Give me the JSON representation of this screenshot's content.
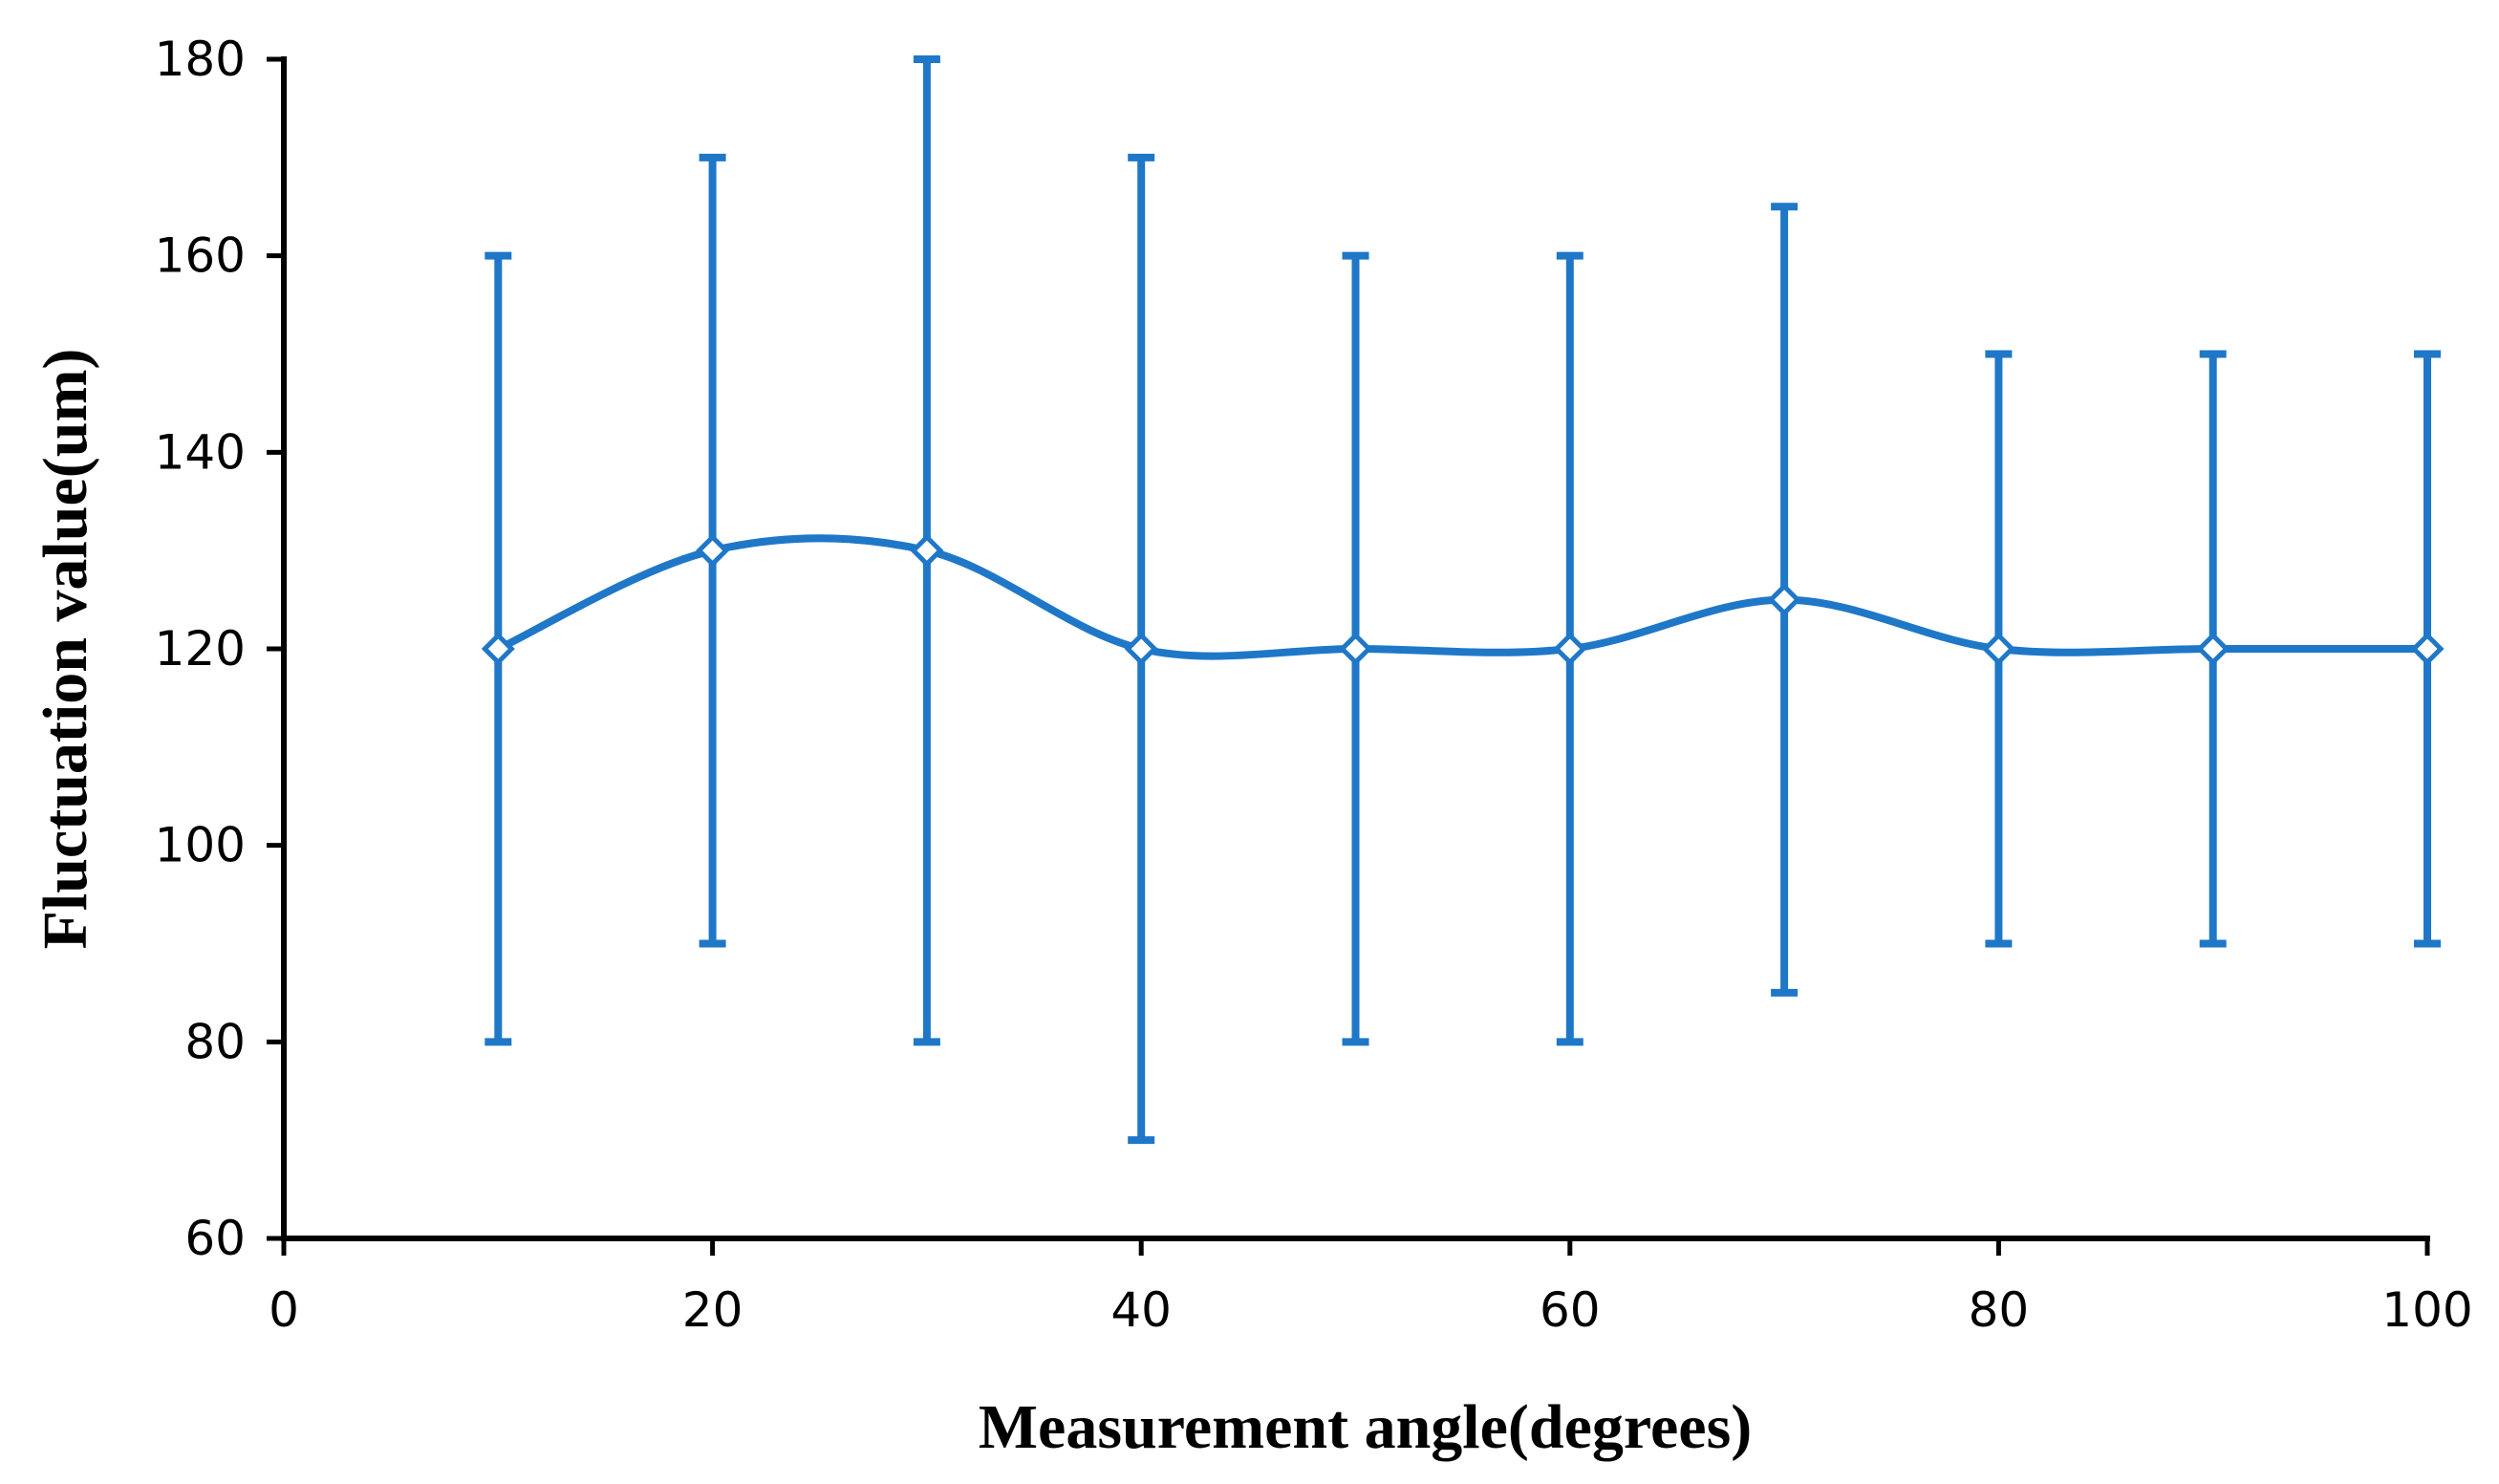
{
  "chart_data": {
    "type": "line",
    "title": "",
    "xlabel": "Measurement angle(degrees)",
    "ylabel": "Fluctuation value(um)",
    "xlim": [
      0,
      100
    ],
    "ylim": [
      60,
      180
    ],
    "x_ticks": [
      "0",
      "20",
      "40",
      "60",
      "80",
      "100"
    ],
    "y_ticks": [
      "60",
      "80",
      "100",
      "120",
      "140",
      "160",
      "180"
    ],
    "grid": false,
    "legend": "none",
    "smooth": true,
    "color": "#1F77C8",
    "marker": "diamond",
    "series": [
      {
        "x": [
          10,
          20,
          30,
          40,
          50,
          60,
          70,
          80,
          90,
          100
        ],
        "y": [
          120,
          130,
          130,
          120,
          120,
          120,
          125,
          120,
          120,
          120
        ],
        "error_low": [
          80,
          90,
          80,
          70,
          80,
          80,
          85,
          90,
          90,
          90
        ],
        "error_high": [
          160,
          170,
          180,
          170,
          160,
          160,
          165,
          150,
          150,
          150
        ]
      }
    ]
  }
}
